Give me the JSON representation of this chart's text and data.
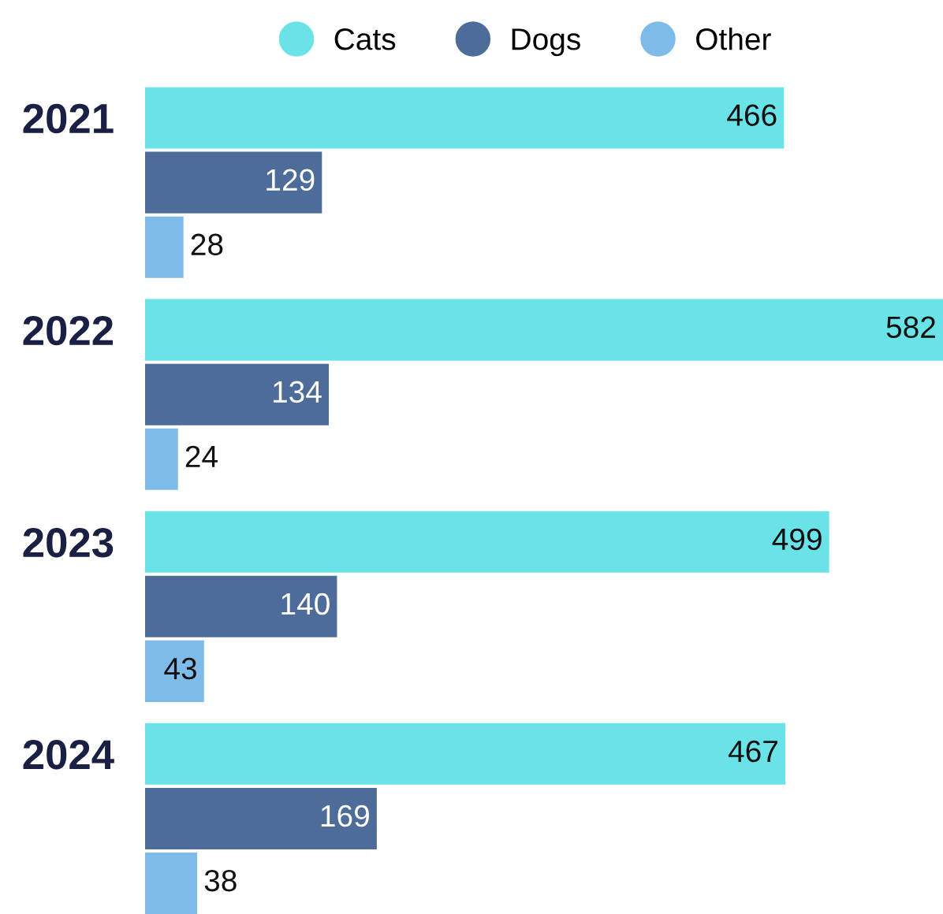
{
  "chart_data": {
    "type": "bar",
    "orientation": "horizontal",
    "categories": [
      "2021",
      "2022",
      "2023",
      "2024"
    ],
    "series": [
      {
        "name": "Cats",
        "color": "#6ae3e8",
        "values": [
          466,
          582,
          499,
          467
        ]
      },
      {
        "name": "Dogs",
        "color": "#4e6c9a",
        "values": [
          129,
          134,
          140,
          169
        ]
      },
      {
        "name": "Other",
        "color": "#7fbbe8",
        "values": [
          28,
          24,
          43,
          38
        ]
      }
    ],
    "data_labels": true,
    "legend": "top",
    "grid": false
  }
}
